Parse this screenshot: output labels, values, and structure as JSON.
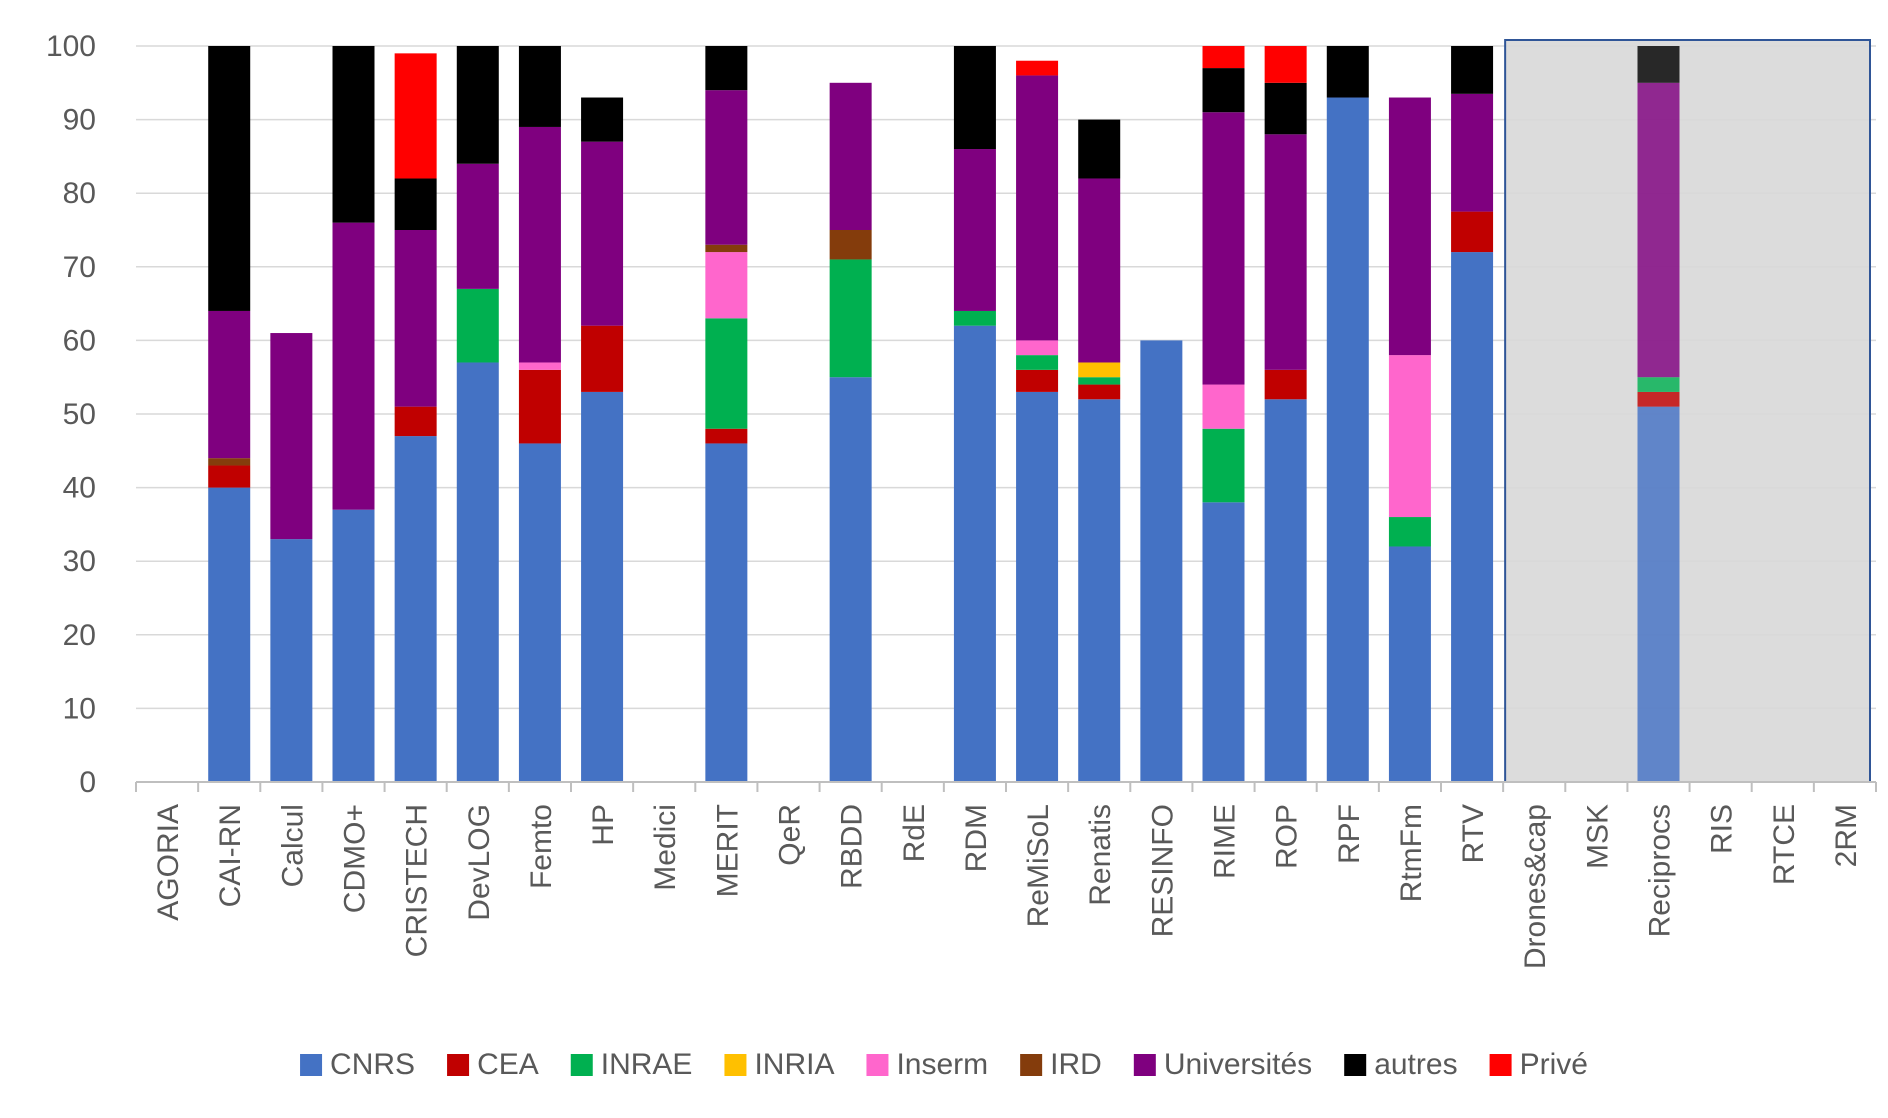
{
  "chart_data": {
    "type": "bar",
    "stacked": true,
    "title": "",
    "xlabel": "",
    "ylabel": "",
    "ylim": [
      0,
      100
    ],
    "yticks": [
      0,
      10,
      20,
      30,
      40,
      50,
      60,
      70,
      80,
      90,
      100
    ],
    "grid": "horizontal",
    "legend_position": "bottom",
    "categories": [
      "AGORIA",
      "CAI-RN",
      "Calcul",
      "CDMO+",
      "CRISTECH",
      "DevLOG",
      "Femto",
      "HP",
      "Medici",
      "MERIT",
      "QeR",
      "RBDD",
      "RdE",
      "RDM",
      "ReMiSoL",
      "Renatis",
      "RESINFO",
      "RIME",
      "ROP",
      "RPF",
      "RtmFm",
      "RTV",
      "Drones&cap",
      "MSK",
      "Reciprocs",
      "RIS",
      "RTCE",
      "2RM"
    ],
    "highlight_region": {
      "from_category": "Drones&cap",
      "to_category": "2RM",
      "fill": "#dcdcdc",
      "border": "#2f5597"
    },
    "series": [
      {
        "name": "CNRS",
        "color": "#4472c4",
        "values": [
          0,
          40,
          33,
          37,
          47,
          57,
          46,
          53,
          0,
          46,
          0,
          55,
          0,
          62,
          53,
          52,
          60,
          38,
          52,
          93,
          32,
          72,
          0,
          0,
          51,
          0,
          0,
          0
        ]
      },
      {
        "name": "CEA",
        "color": "#c00000",
        "values": [
          0,
          3,
          0,
          0,
          4,
          0,
          10,
          9,
          0,
          2,
          0,
          0,
          0,
          0,
          3,
          2,
          0,
          0,
          4,
          0,
          0,
          5.5,
          0,
          0,
          2,
          0,
          0,
          0
        ]
      },
      {
        "name": "INRAE",
        "color": "#00b050",
        "values": [
          0,
          0,
          0,
          0,
          0,
          10,
          0,
          0,
          0,
          15,
          0,
          16,
          0,
          2,
          2,
          1,
          0,
          10,
          0,
          0,
          4,
          0,
          0,
          0,
          2,
          0,
          0,
          0
        ]
      },
      {
        "name": "INRIA",
        "color": "#ffc000",
        "values": [
          0,
          0,
          0,
          0,
          0,
          0,
          0,
          0,
          0,
          0,
          0,
          0,
          0,
          0,
          0,
          2,
          0,
          0,
          0,
          0,
          0,
          0,
          0,
          0,
          0,
          0,
          0,
          0
        ]
      },
      {
        "name": "Inserm",
        "color": "#ff66cc",
        "values": [
          0,
          0,
          0,
          0,
          0,
          0,
          1,
          0,
          0,
          9,
          0,
          0,
          0,
          0,
          2,
          0,
          0,
          6,
          0,
          0,
          22,
          0,
          0,
          0,
          0,
          0,
          0,
          0
        ]
      },
      {
        "name": "IRD",
        "color": "#843c0c",
        "values": [
          0,
          1,
          0,
          0,
          0,
          0,
          0,
          0,
          0,
          1,
          0,
          4,
          0,
          0,
          0,
          0,
          0,
          0,
          0,
          0,
          0,
          0,
          0,
          0,
          0,
          0,
          0,
          0
        ]
      },
      {
        "name": "Universités",
        "color": "#7f007f",
        "values": [
          0,
          20,
          28,
          39,
          24,
          17,
          32,
          25,
          0,
          21,
          0,
          20,
          0,
          22,
          36,
          25,
          0,
          37,
          32,
          0,
          35,
          16,
          0,
          0,
          40,
          0,
          0,
          0
        ]
      },
      {
        "name": "autres",
        "color": "#000000",
        "values": [
          0,
          36,
          0,
          24,
          7,
          16,
          11,
          6,
          0,
          6,
          0,
          0,
          0,
          14,
          0,
          8,
          0,
          6,
          7,
          7,
          0,
          6.5,
          0,
          0,
          5,
          0,
          0,
          0
        ]
      },
      {
        "name": "Privé",
        "color": "#ff0000",
        "values": [
          0,
          0,
          0,
          0,
          17,
          0,
          0,
          0,
          0,
          0,
          0,
          0,
          0,
          0,
          2,
          0,
          0,
          3,
          5,
          0,
          0,
          0,
          0,
          0,
          0,
          0,
          0,
          0
        ]
      }
    ]
  }
}
